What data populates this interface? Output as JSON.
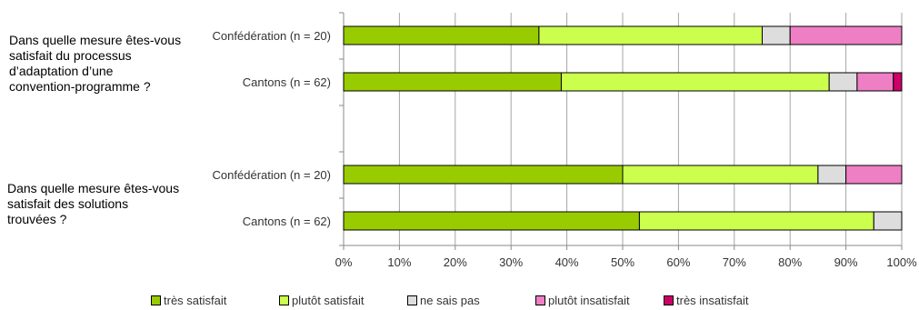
{
  "questions": {
    "q1": "Dans quelle mesure êtes-vous satisfait du processus d’adaptation d’une convention-programme ?",
    "q2": "Dans quelle mesure êtes-vous satisfait des solutions trouvées ?"
  },
  "chart_data": {
    "type": "bar",
    "orientation": "horizontal",
    "stacked": true,
    "categories": [
      "Confédération (n = 20)",
      "Cantons (n = 62)",
      "Confédération (n = 20)",
      "Cantons (n = 62)"
    ],
    "groups": [
      {
        "question": "q1",
        "rows": [
          0,
          1
        ]
      },
      {
        "question": "q2",
        "rows": [
          2,
          3
        ]
      }
    ],
    "series": [
      {
        "name": "très satisfait",
        "color": "#99cc00",
        "values": [
          35,
          39,
          50,
          53
        ]
      },
      {
        "name": "plutôt satisfait",
        "color": "#ccff4d",
        "values": [
          40,
          48,
          35,
          42
        ]
      },
      {
        "name": "ne sais pas",
        "color": "#dddddd",
        "values": [
          5,
          5,
          5,
          5
        ]
      },
      {
        "name": "plutôt insatisfait",
        "color": "#ee7fc4",
        "values": [
          20,
          6.5,
          10,
          0
        ]
      },
      {
        "name": "très insatisfait",
        "color": "#cc0066",
        "values": [
          0,
          1.5,
          0,
          0
        ]
      }
    ],
    "xlim": [
      0,
      100
    ],
    "xticks": [
      "0%",
      "10%",
      "20%",
      "30%",
      "40%",
      "50%",
      "60%",
      "70%",
      "80%",
      "90%",
      "100%"
    ],
    "grid": true,
    "legend_position": "bottom"
  }
}
